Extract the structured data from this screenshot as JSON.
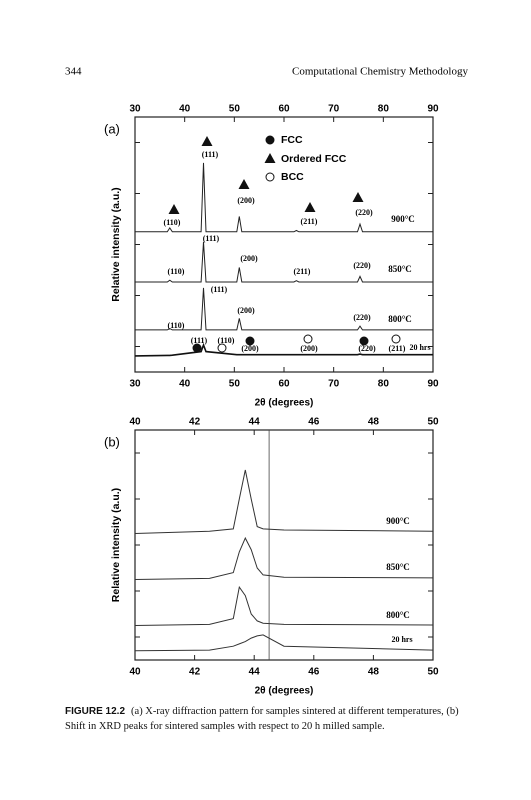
{
  "header": {
    "page_number": "344",
    "running_title": "Computational Chemistry Methodology"
  },
  "chart_data": [
    {
      "type": "line",
      "panel": "(a)",
      "xlabel": "2θ (degrees)",
      "ylabel": "Relative intensity (a.u.)",
      "xlim": [
        30,
        90
      ],
      "xticks": [
        30,
        40,
        50,
        60,
        70,
        80,
        90
      ],
      "ylim": [
        0,
        100
      ],
      "yticks": [
        10,
        30,
        50,
        70,
        90
      ],
      "x": [
        30,
        36.5,
        37,
        37.5,
        43.3,
        43.8,
        44.3,
        50.5,
        51,
        51.5,
        62,
        62.5,
        63,
        74.8,
        75.3,
        75.8,
        90
      ],
      "series": [
        {
          "name": "900°C",
          "color": "#222222",
          "values": [
            55,
            55,
            56.5,
            55,
            55,
            82,
            55,
            55,
            61,
            55,
            55,
            55.5,
            55,
            55,
            58,
            55,
            55
          ]
        },
        {
          "name": "850°C",
          "color": "#222222",
          "values": [
            35.3,
            35.3,
            36,
            35.3,
            35.3,
            51,
            35.3,
            35.3,
            41,
            35.3,
            35.3,
            35.8,
            35.3,
            35.3,
            37.5,
            35.3,
            35.3
          ]
        },
        {
          "name": "800°C",
          "color": "#222222",
          "values": [
            16.5,
            16.5,
            17,
            16.5,
            16.5,
            33,
            16.5,
            16.5,
            21,
            16.5,
            16.5,
            16.5,
            16.5,
            16.5,
            18,
            16.5,
            16.5
          ]
        },
        {
          "name": "20 hrs",
          "color": "#111111",
          "values": [
            6.3,
            6.5,
            6.5,
            6.6,
            8,
            10.6,
            8,
            6.8,
            6.8,
            6.8,
            6.8,
            6.8,
            6.8,
            6.8,
            7,
            6.8,
            6.8
          ]
        }
      ],
      "legend": [
        "FCC",
        "Ordered FCC",
        "BCC"
      ],
      "annotations": [
        "(111)",
        "(200)",
        "(110)",
        "(211)",
        "(220)",
        "(111)",
        "(200)",
        "(110)",
        "(211)",
        "(220)",
        "(111)",
        "(200)",
        "(110)",
        "(220)",
        "(111)",
        "(110)",
        "(200)",
        "(200)",
        "(220)",
        "(211)"
      ]
    },
    {
      "type": "line",
      "panel": "(b)",
      "xlabel": "2θ (degrees)",
      "ylabel": "Relative intensity (a.u.)",
      "xlim": [
        40,
        50
      ],
      "xticks": [
        40,
        42,
        44,
        46,
        48,
        50
      ],
      "ylim": [
        0,
        100
      ],
      "yticks": [
        10,
        30,
        50,
        70,
        90
      ],
      "vline": 44.5,
      "x": [
        40,
        42.5,
        43.3,
        43.5,
        43.7,
        43.9,
        44.1,
        44.3,
        45,
        50
      ],
      "series": [
        {
          "name": "900°C",
          "color": "#333333",
          "values": [
            55,
            56,
            57,
            70,
            82.6,
            70,
            58,
            57,
            56.5,
            56
          ]
        },
        {
          "name": "850°C",
          "color": "#333333",
          "values": [
            35,
            35.5,
            38,
            47,
            53,
            48,
            40,
            37,
            36,
            35.7
          ]
        },
        {
          "name": "800°C",
          "color": "#333333",
          "values": [
            15,
            15.5,
            18,
            31.7,
            28,
            20,
            17,
            16,
            15.5,
            15.2
          ]
        },
        {
          "name": "20 hrs",
          "color": "#333333",
          "values": [
            4,
            4.3,
            6,
            7,
            8,
            9.5,
            10.5,
            10.9,
            6,
            4.3
          ]
        }
      ]
    }
  ],
  "caption": {
    "label": "FIGURE 12.2",
    "text": "(a) X-ray diffraction pattern for samples sintered at different temperatures, (b) Shift in XRD peaks for sintered samples with respect to 20 h milled sample."
  }
}
